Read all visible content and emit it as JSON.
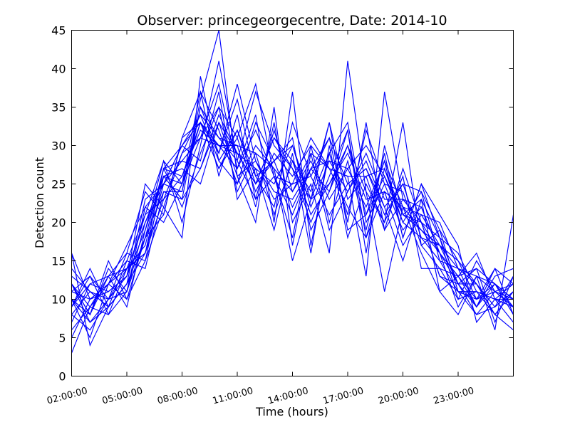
{
  "chart_data": {
    "type": "line",
    "title": "Observer: princegeorgecentre, Date: 2014-10",
    "xlabel": "Time (hours)",
    "ylabel": "Detection count",
    "ylim": [
      0,
      45
    ],
    "xlim": [
      2,
      26
    ],
    "grid": false,
    "line_color": "#0000ff",
    "x_ticks": [
      {
        "value": 2,
        "label": "02:00:00"
      },
      {
        "value": 5,
        "label": "05:00:00"
      },
      {
        "value": 8,
        "label": "08:00:00"
      },
      {
        "value": 11,
        "label": "11:00:00"
      },
      {
        "value": 14,
        "label": "14:00:00"
      },
      {
        "value": 17,
        "label": "17:00:00"
      },
      {
        "value": 20,
        "label": "20:00:00"
      },
      {
        "value": 23,
        "label": "23:00:00"
      }
    ],
    "y_ticks": [
      0,
      5,
      10,
      15,
      20,
      25,
      30,
      35,
      40,
      45
    ],
    "x": [
      2,
      3,
      4,
      5,
      6,
      7,
      8,
      9,
      10,
      11,
      12,
      13,
      14,
      15,
      16,
      17,
      18,
      19,
      20,
      21,
      22,
      23,
      24,
      25,
      26
    ],
    "series": [
      {
        "values": [
          16,
          10,
          12,
          14,
          20,
          25,
          30,
          33,
          27,
          32,
          25,
          28,
          22,
          27,
          24,
          32,
          18,
          27,
          20,
          18,
          17,
          14,
          9,
          12,
          10
        ]
      },
      {
        "values": [
          10,
          7,
          9,
          12,
          16,
          27,
          28,
          31,
          35,
          31,
          38,
          26,
          18,
          30,
          27,
          26,
          13,
          37,
          23,
          20,
          13,
          11,
          10,
          14,
          8
        ]
      },
      {
        "values": [
          12,
          8,
          15,
          10,
          18,
          21,
          31,
          33,
          30,
          27,
          34,
          20,
          37,
          17,
          29,
          33,
          20,
          25,
          19,
          22,
          16,
          9,
          13,
          6,
          21
        ]
      },
      {
        "values": [
          9,
          12,
          11,
          13,
          25,
          22,
          18,
          39,
          28,
          25,
          30,
          27,
          15,
          23,
          33,
          19,
          21,
          28,
          18,
          25,
          21,
          17,
          7,
          10,
          9
        ]
      },
      {
        "values": [
          6,
          9,
          13,
          16,
          15,
          26,
          23,
          27,
          34,
          29,
          25,
          31,
          28,
          21,
          25,
          30,
          24,
          20,
          33,
          17,
          19,
          15,
          12,
          8,
          11
        ]
      },
      {
        "values": [
          11,
          13,
          8,
          11,
          22,
          25,
          24,
          36,
          45,
          26,
          20,
          35,
          17,
          29,
          19,
          24,
          28,
          22,
          15,
          23,
          11,
          13,
          16,
          10,
          7
        ]
      },
      {
        "values": [
          8,
          6,
          10,
          14,
          16,
          23,
          26,
          33,
          29,
          38,
          28,
          24,
          23,
          27,
          31,
          20,
          33,
          19,
          23,
          20,
          18,
          12,
          9,
          14,
          12
        ]
      },
      {
        "values": [
          14,
          11,
          9,
          12,
          18,
          27,
          30,
          28,
          37,
          23,
          27,
          19,
          29,
          16,
          30,
          18,
          25,
          20,
          26,
          14,
          14,
          10,
          11,
          8,
          6
        ]
      },
      {
        "values": [
          5,
          10,
          12,
          17,
          22,
          20,
          25,
          31,
          30,
          30,
          22,
          33,
          20,
          25,
          16,
          41,
          24,
          11,
          22,
          16,
          11,
          8,
          13,
          12,
          10
        ]
      },
      {
        "values": [
          12,
          7,
          10,
          13,
          19,
          26,
          25,
          37,
          32,
          25,
          33,
          28,
          30,
          22,
          28,
          27,
          30,
          26,
          21,
          19,
          16,
          12,
          8,
          9,
          13
        ]
      },
      {
        "values": [
          9,
          14,
          9,
          15,
          21,
          28,
          20,
          30,
          41,
          28,
          23,
          26,
          25,
          31,
          27,
          22,
          18,
          24,
          17,
          21,
          20,
          14,
          13,
          11,
          10
        ]
      },
      {
        "values": [
          3,
          9,
          12,
          10,
          15,
          22,
          29,
          34,
          28,
          32,
          26,
          22,
          33,
          26,
          21,
          25,
          27,
          22,
          25,
          24,
          15,
          11,
          8,
          11,
          9
        ]
      },
      {
        "values": [
          16,
          4,
          9,
          12,
          18,
          24,
          23,
          35,
          31,
          28,
          37,
          30,
          27,
          20,
          26,
          32,
          16,
          30,
          21,
          23,
          18,
          16,
          11,
          10,
          12
        ]
      },
      {
        "values": [
          10,
          8,
          14,
          11,
          20,
          26,
          27,
          25,
          33,
          29,
          27,
          25,
          30,
          23,
          29,
          21,
          32,
          25,
          24,
          17,
          14,
          13,
          14,
          7,
          13
        ]
      },
      {
        "values": [
          8,
          11,
          10,
          16,
          24,
          21,
          31,
          37,
          26,
          34,
          23,
          32,
          24,
          28,
          23,
          27,
          22,
          28,
          22,
          19,
          17,
          15,
          10,
          12,
          8
        ]
      },
      {
        "values": [
          12,
          9,
          8,
          14,
          17,
          27,
          22,
          29,
          35,
          24,
          29,
          21,
          28,
          24,
          33,
          23,
          26,
          19,
          27,
          20,
          13,
          12,
          12,
          9,
          11
        ]
      },
      {
        "values": [
          7,
          12,
          13,
          9,
          19,
          28,
          25,
          33,
          27,
          31,
          24,
          29,
          26,
          30,
          20,
          28,
          19,
          29,
          18,
          25,
          18,
          10,
          15,
          11,
          9
        ]
      },
      {
        "values": [
          11,
          10,
          11,
          13,
          21,
          23,
          29,
          31,
          38,
          27,
          32,
          26,
          21,
          27,
          28,
          24,
          29,
          23,
          23,
          22,
          16,
          13,
          9,
          13,
          14
        ]
      },
      {
        "values": [
          10,
          5,
          12,
          15,
          14,
          24,
          24,
          35,
          29,
          36,
          26,
          28,
          31,
          19,
          24,
          30,
          21,
          26,
          20,
          24,
          19,
          11,
          11,
          10,
          10
        ]
      },
      {
        "values": [
          13,
          11,
          9,
          12,
          23,
          25,
          28,
          27,
          33,
          26,
          28,
          23,
          25,
          26,
          31,
          25,
          27,
          21,
          25,
          18,
          15,
          14,
          12,
          8,
          11
        ]
      },
      {
        "values": [
          9,
          13,
          10,
          11,
          18,
          27,
          26,
          32,
          30,
          29,
          25,
          31,
          27,
          23,
          25,
          29,
          23,
          24,
          22,
          21,
          17,
          12,
          14,
          12,
          9
        ]
      },
      {
        "values": [
          12,
          8,
          13,
          14,
          16,
          25,
          30,
          34,
          31,
          30,
          29,
          27,
          24,
          29,
          27,
          26,
          26,
          27,
          21,
          20,
          16,
          13,
          10,
          11,
          12
        ]
      }
    ]
  }
}
